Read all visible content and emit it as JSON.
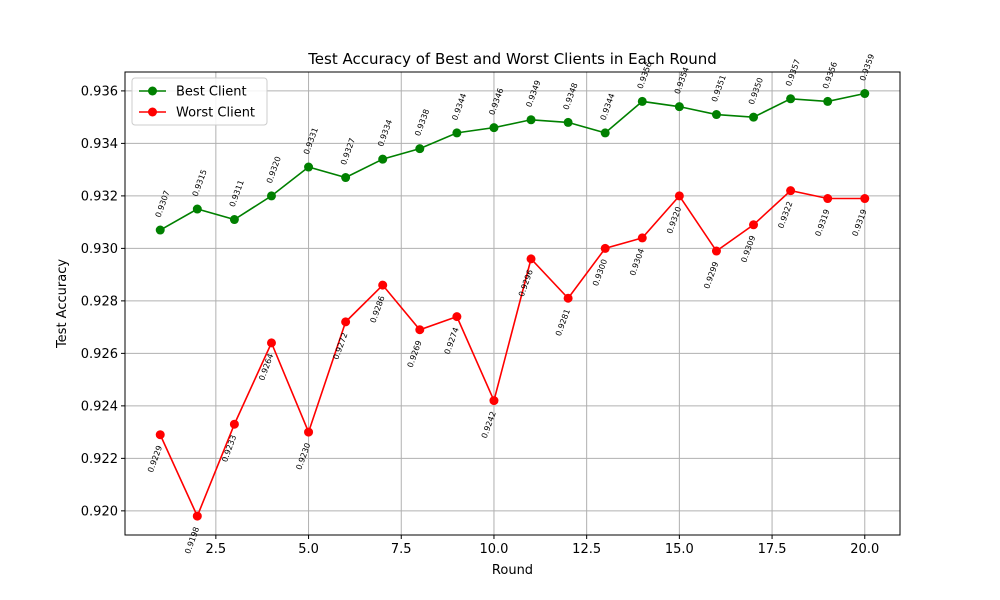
{
  "chart_data": {
    "type": "line",
    "title": "Test Accuracy of Best and Worst Clients in Each Round",
    "xlabel": "Round",
    "ylabel": "Test Accuracy",
    "xlim": [
      0.05,
      20.95
    ],
    "ylim": [
      0.91908,
      0.93672
    ],
    "xticks": [
      2.5,
      5.0,
      7.5,
      10.0,
      12.5,
      15.0,
      17.5,
      20.0
    ],
    "xtick_labels": [
      "2.5",
      "5.0",
      "7.5",
      "10.0",
      "12.5",
      "15.0",
      "17.5",
      "20.0"
    ],
    "yticks": [
      0.92,
      0.922,
      0.924,
      0.926,
      0.928,
      0.93,
      0.932,
      0.934,
      0.936
    ],
    "ytick_labels": [
      "0.920",
      "0.922",
      "0.924",
      "0.926",
      "0.928",
      "0.930",
      "0.932",
      "0.934",
      "0.936"
    ],
    "grid": true,
    "legend_position": "top-left",
    "x": [
      1,
      2,
      3,
      4,
      5,
      6,
      7,
      8,
      9,
      10,
      11,
      12,
      13,
      14,
      15,
      16,
      17,
      18,
      19,
      20
    ],
    "series": [
      {
        "name": "Best Client",
        "color": "#008000",
        "label_position": "above",
        "values": [
          0.9307,
          0.9315,
          0.9311,
          0.932,
          0.9331,
          0.9327,
          0.9334,
          0.9338,
          0.9344,
          0.9346,
          0.9349,
          0.9348,
          0.9344,
          0.9356,
          0.9354,
          0.9351,
          0.935,
          0.9357,
          0.9356,
          0.9359
        ],
        "labels": [
          "0.9307",
          "0.9315",
          "0.9311",
          "0.9320",
          "0.9331",
          "0.9327",
          "0.9334",
          "0.9338",
          "0.9344",
          "0.9346",
          "0.9349",
          "0.9348",
          "0.9344",
          "0.9356",
          "0.9354",
          "0.9351",
          "0.9350",
          "0.9357",
          "0.9356",
          "0.9359"
        ]
      },
      {
        "name": "Worst Client",
        "color": "#ff0000",
        "label_position": "below",
        "values": [
          0.9229,
          0.9198,
          0.9233,
          0.9264,
          0.923,
          0.9272,
          0.9286,
          0.9269,
          0.9274,
          0.9242,
          0.9296,
          0.9281,
          0.93,
          0.9304,
          0.932,
          0.9299,
          0.9309,
          0.9322,
          0.9319,
          0.9319
        ],
        "labels": [
          "0.9229",
          "0.9198",
          "0.9233",
          "0.9264",
          "0.9230",
          "0.9272",
          "0.9286",
          "0.9269",
          "0.9274",
          "0.9242",
          "0.9296",
          "0.9281",
          "0.9300",
          "0.9304",
          "0.9320",
          "0.9299",
          "0.9309",
          "0.9322",
          "0.9319",
          "0.9319"
        ]
      }
    ]
  }
}
